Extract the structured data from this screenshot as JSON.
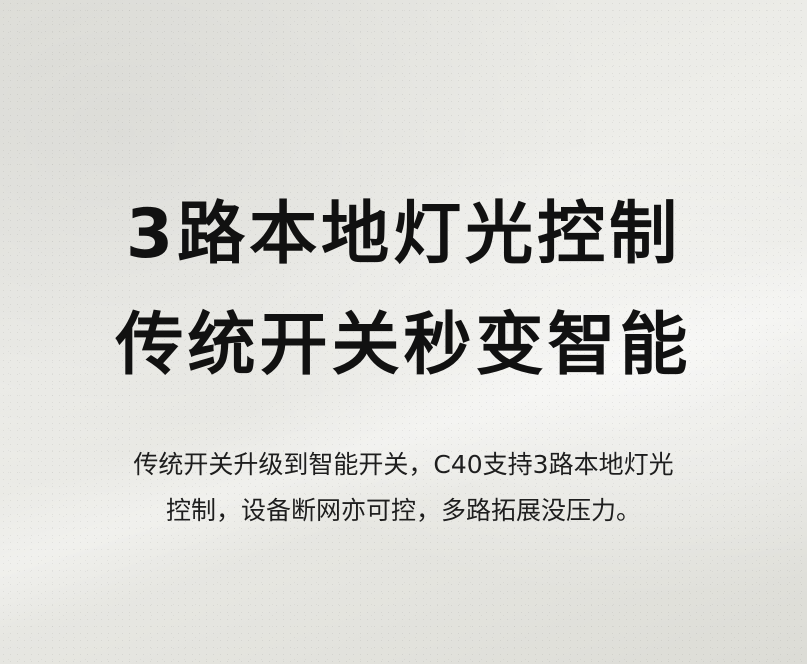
{
  "headline": {
    "line1": "3路本地灯光控制",
    "line2": "传统开关秒变智能"
  },
  "description": {
    "line1": "传统开关升级到智能开关，C40支持3路本地灯光",
    "line2": "控制，设备断网亦可控，多路拓展没压力。"
  }
}
